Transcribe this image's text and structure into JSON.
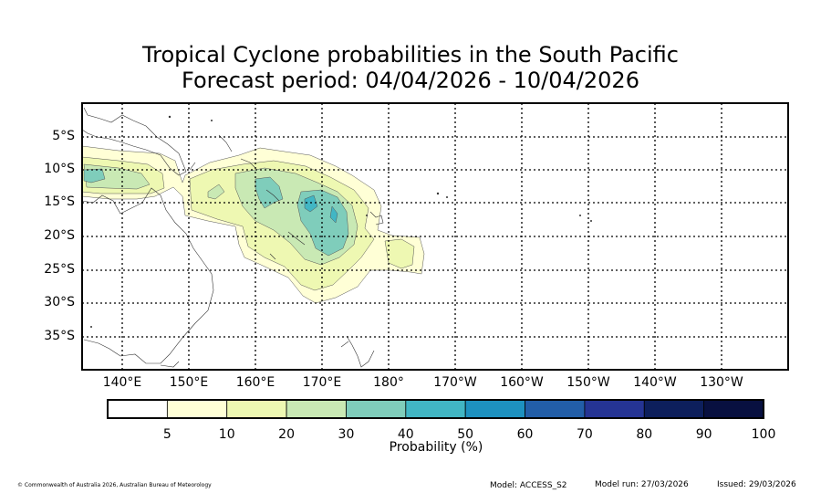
{
  "title": {
    "line1": "Tropical Cyclone probabilities in the South Pacific",
    "line2": "Forecast period: 04/04/2026 - 10/04/2026"
  },
  "map": {
    "lat_labels": [
      "5°S",
      "10°S",
      "15°S",
      "20°S",
      "25°S",
      "30°S",
      "35°S"
    ],
    "lon_labels": [
      "140°E",
      "150°E",
      "160°E",
      "170°E",
      "180°",
      "170°W",
      "160°W",
      "150°W",
      "140°W",
      "130°W"
    ]
  },
  "colorbar": {
    "ticks": [
      "5",
      "10",
      "20",
      "30",
      "40",
      "50",
      "60",
      "70",
      "80",
      "90",
      "100"
    ],
    "colors": [
      "#ffffff",
      "#ffffd6",
      "#eef8b2",
      "#c9e9b4",
      "#7fcdbb",
      "#41b6c4",
      "#1d91c0",
      "#225ea8",
      "#253494",
      "#0d1f5c",
      "#081040"
    ],
    "label": "Probability (%)"
  },
  "footer": {
    "copyright": "© Commonwealth of Australia 2026, Australian Bureau of Meteorology",
    "model": "Model: ACCESS_S2",
    "model_run": "Model run: 27/03/2026",
    "issued": "Issued: 29/03/2026"
  }
}
